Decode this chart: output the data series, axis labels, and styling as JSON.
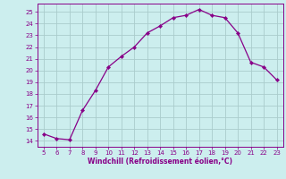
{
  "x": [
    5,
    6,
    7,
    8,
    9,
    10,
    11,
    12,
    13,
    14,
    15,
    16,
    17,
    18,
    19,
    20,
    21,
    22,
    23
  ],
  "y": [
    14.6,
    14.2,
    14.1,
    16.6,
    18.3,
    20.3,
    21.2,
    22.0,
    23.2,
    23.8,
    24.5,
    24.7,
    25.2,
    24.7,
    24.5,
    23.2,
    20.7,
    20.3,
    19.2
  ],
  "line_color": "#880088",
  "marker": "D",
  "marker_size": 2.2,
  "bg_color": "#cceeee",
  "grid_color": "#aacccc",
  "xlabel": "Windchill (Refroidissement éolien,°C)",
  "xlabel_color": "#880088",
  "tick_color": "#880088",
  "spine_color": "#880088",
  "ylim": [
    13.5,
    25.7
  ],
  "xlim": [
    4.5,
    23.5
  ],
  "yticks": [
    14,
    15,
    16,
    17,
    18,
    19,
    20,
    21,
    22,
    23,
    24,
    25
  ],
  "xticks": [
    5,
    6,
    7,
    8,
    9,
    10,
    11,
    12,
    13,
    14,
    15,
    16,
    17,
    18,
    19,
    20,
    21,
    22,
    23
  ],
  "tick_labelsize": 5.0,
  "xlabel_fontsize": 5.5,
  "linewidth": 0.9
}
